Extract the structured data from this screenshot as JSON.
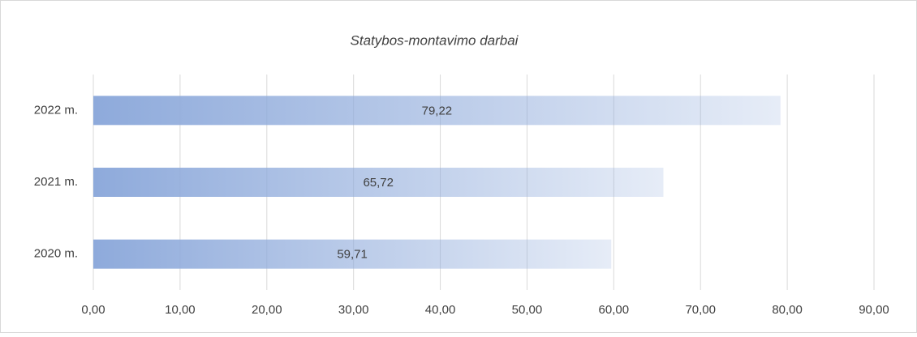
{
  "chart_data": {
    "type": "bar",
    "orientation": "horizontal",
    "title": "Statybos-montavimo  darbai",
    "categories": [
      "2022 m.",
      "2021 m.",
      "2020 m."
    ],
    "values": [
      79.22,
      65.72,
      59.71
    ],
    "value_labels": [
      "79,22",
      "65,72",
      "59,71"
    ],
    "color": "#8eaadb",
    "xlim": [
      0,
      90
    ],
    "xticks": [
      {
        "value": 0,
        "label": "0,00"
      },
      {
        "value": 10,
        "label": "10,00"
      },
      {
        "value": 20,
        "label": "20,00"
      },
      {
        "value": 30,
        "label": "30,00"
      },
      {
        "value": 40,
        "label": "40,00"
      },
      {
        "value": 50,
        "label": "50,00"
      },
      {
        "value": 60,
        "label": "60,00"
      },
      {
        "value": 70,
        "label": "70,00"
      },
      {
        "value": 80,
        "label": "80,00"
      },
      {
        "value": 90,
        "label": "90,00"
      }
    ],
    "grid": true
  }
}
